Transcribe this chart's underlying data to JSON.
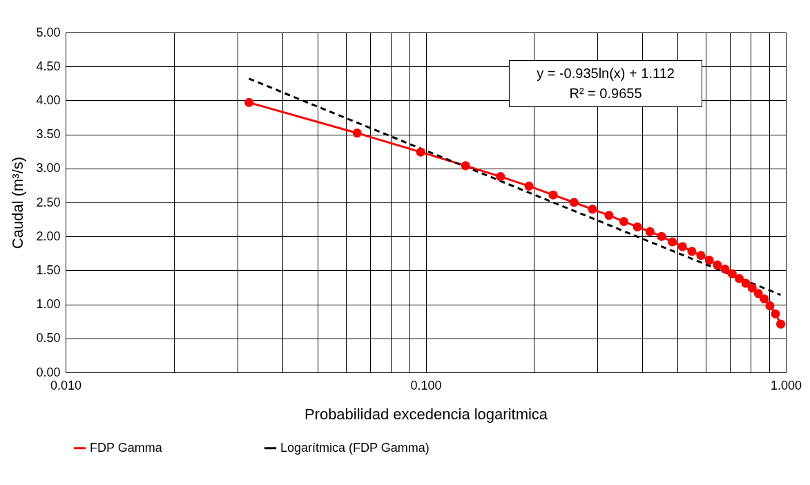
{
  "chart_data": {
    "type": "line",
    "xlabel": "Probabilidad excedencia logaritmica",
    "ylabel": "Caudal (m³/s)",
    "series": [
      {
        "name": "FDP Gamma",
        "color": "#ff0000",
        "marker": "circle",
        "line_style": "solid",
        "x": [
          0.0323,
          0.0645,
          0.0968,
          0.129,
          0.1613,
          0.1935,
          0.2258,
          0.2581,
          0.2903,
          0.3226,
          0.3548,
          0.3871,
          0.4194,
          0.4516,
          0.4839,
          0.5161,
          0.5484,
          0.5806,
          0.6129,
          0.6452,
          0.6774,
          0.7097,
          0.7419,
          0.7742,
          0.8065,
          0.8387,
          0.871,
          0.9032,
          0.9355,
          0.9677
        ],
        "values": [
          3.97,
          3.52,
          3.24,
          3.04,
          2.88,
          2.74,
          2.61,
          2.5,
          2.4,
          2.31,
          2.22,
          2.14,
          2.07,
          2.0,
          1.92,
          1.85,
          1.78,
          1.72,
          1.65,
          1.58,
          1.52,
          1.45,
          1.38,
          1.31,
          1.24,
          1.16,
          1.08,
          0.98,
          0.86,
          0.71
        ]
      },
      {
        "name": "Logarítmica (FDP Gamma)",
        "type": "line",
        "color": "#000000",
        "marker": "none",
        "line_style": "dashed",
        "x": [
          0.0323,
          0.9677
        ],
        "values": [
          4.32,
          1.14
        ]
      }
    ],
    "log": "x",
    "xlim": [
      0.01,
      1
    ],
    "ylim": [
      0,
      5
    ],
    "xticks": [
      {
        "value": 0.01,
        "label": "0.010"
      },
      {
        "value": 0.02,
        "label": null
      },
      {
        "value": 0.03,
        "label": null
      },
      {
        "value": 0.04,
        "label": null
      },
      {
        "value": 0.05,
        "label": null
      },
      {
        "value": 0.06,
        "label": null
      },
      {
        "value": 0.07,
        "label": null
      },
      {
        "value": 0.08,
        "label": null
      },
      {
        "value": 0.09,
        "label": null
      },
      {
        "value": 0.1,
        "label": "0.100"
      },
      {
        "value": 0.2,
        "label": null
      },
      {
        "value": 0.3,
        "label": null
      },
      {
        "value": 0.4,
        "label": null
      },
      {
        "value": 0.5,
        "label": null
      },
      {
        "value": 0.6,
        "label": null
      },
      {
        "value": 0.7,
        "label": null
      },
      {
        "value": 0.8,
        "label": null
      },
      {
        "value": 0.9,
        "label": null
      },
      {
        "value": 1,
        "label": "1.000"
      }
    ],
    "yticks": [
      {
        "value": 0,
        "label": "0.00"
      },
      {
        "value": 0.5,
        "label": "0.50"
      },
      {
        "value": 1,
        "label": "1.00"
      },
      {
        "value": 1.5,
        "label": "1.50"
      },
      {
        "value": 2,
        "label": "2.00"
      },
      {
        "value": 2.5,
        "label": "2.50"
      },
      {
        "value": 3,
        "label": "3.00"
      },
      {
        "value": 3.5,
        "label": "3.50"
      },
      {
        "value": 4,
        "label": "4.00"
      },
      {
        "value": 4.5,
        "label": "4.50"
      },
      {
        "value": 5,
        "label": "5.00"
      }
    ],
    "grid": true,
    "legend": "bottom",
    "annotations": [
      "y = -0.935ln(x) + 1.112",
      "R² = 0.9655"
    ]
  }
}
